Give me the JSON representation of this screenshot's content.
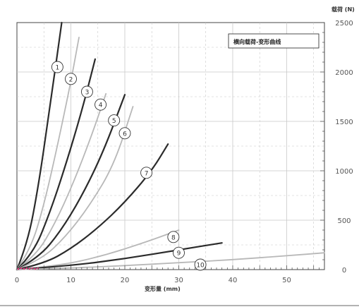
{
  "chart_data": {
    "type": "line",
    "title": "横向载荷-变形曲线",
    "xlabel": "变形量 (mm)",
    "ylabel": "载荷 (N)",
    "xlim": [
      0,
      57
    ],
    "ylim": [
      0,
      2500
    ],
    "x_ticks": [
      "0",
      "10",
      "20",
      "30",
      "40",
      "50"
    ],
    "y_ticks": [
      "0",
      "500",
      "1000",
      "1500",
      "2000",
      "2500"
    ],
    "grid": true,
    "legend_position": "top-right",
    "colors": {
      "dark": "#2b2b2b",
      "light": "#b8b8b8",
      "axis": "#444444",
      "grid": "#c8c8c8",
      "marker": "#e0337a"
    },
    "series": [
      {
        "name": "1",
        "shade": "dark",
        "x": [
          0,
          2,
          4,
          6,
          8.3
        ],
        "y": [
          0,
          270,
          850,
          1600,
          2500
        ]
      },
      {
        "name": "2",
        "shade": "light",
        "x": [
          0,
          2.5,
          5,
          7.5,
          10,
          11.5
        ],
        "y": [
          0,
          200,
          650,
          1250,
          1900,
          2350
        ]
      },
      {
        "name": "3",
        "shade": "dark",
        "x": [
          0,
          3,
          6,
          9,
          12,
          14.5
        ],
        "y": [
          0,
          160,
          560,
          1050,
          1600,
          2130
        ]
      },
      {
        "name": "4",
        "shade": "light",
        "x": [
          0,
          3.5,
          7,
          10.5,
          14,
          16.5
        ],
        "y": [
          0,
          140,
          460,
          880,
          1380,
          1780
        ]
      },
      {
        "name": "5",
        "shade": "dark",
        "x": [
          0,
          4,
          8,
          12,
          16,
          20
        ],
        "y": [
          0,
          120,
          380,
          740,
          1190,
          1770
        ]
      },
      {
        "name": "6",
        "shade": "light",
        "x": [
          0,
          4.5,
          9,
          13.5,
          18,
          21.5
        ],
        "y": [
          0,
          100,
          330,
          650,
          1060,
          1650
        ]
      },
      {
        "name": "7",
        "shade": "dark",
        "x": [
          0,
          5,
          10,
          15,
          20,
          25,
          28
        ],
        "y": [
          0,
          60,
          210,
          420,
          680,
          1000,
          1270
        ]
      },
      {
        "name": "8",
        "shade": "light",
        "x": [
          0,
          8,
          16,
          24,
          30
        ],
        "y": [
          0,
          40,
          140,
          280,
          400
        ]
      },
      {
        "name": "9",
        "shade": "dark",
        "x": [
          0,
          10,
          20,
          30,
          38
        ],
        "y": [
          0,
          40,
          110,
          200,
          270
        ]
      },
      {
        "name": "10",
        "shade": "light",
        "x": [
          0,
          10,
          20,
          30,
          40,
          50,
          57
        ],
        "y": [
          0,
          15,
          40,
          70,
          100,
          140,
          170
        ]
      }
    ],
    "labels": [
      {
        "text": "1",
        "x": 7.5,
        "y": 2050
      },
      {
        "text": "2",
        "x": 10.0,
        "y": 1930
      },
      {
        "text": "3",
        "x": 13.0,
        "y": 1800
      },
      {
        "text": "4",
        "x": 15.5,
        "y": 1670
      },
      {
        "text": "5",
        "x": 18.0,
        "y": 1510
      },
      {
        "text": "6",
        "x": 20.0,
        "y": 1380
      },
      {
        "text": "7",
        "x": 24.0,
        "y": 980
      },
      {
        "text": "8",
        "x": 29.0,
        "y": 330
      },
      {
        "text": "9",
        "x": 30.0,
        "y": 170
      },
      {
        "text": "10",
        "x": 34.0,
        "y": 50
      }
    ]
  }
}
